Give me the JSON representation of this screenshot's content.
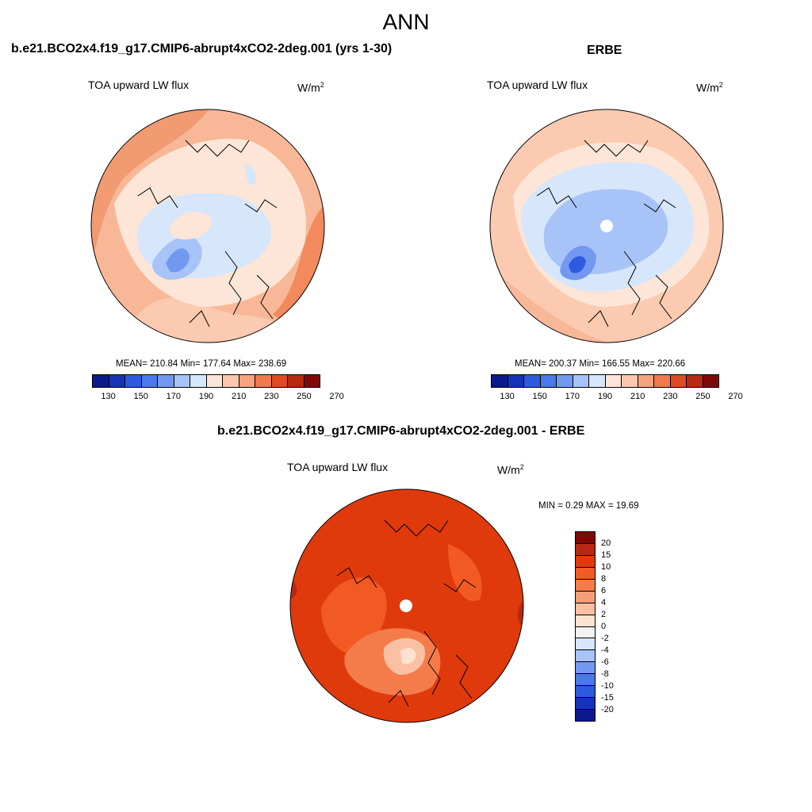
{
  "header": {
    "title": "ANN"
  },
  "panels": {
    "model": {
      "case_name": "b.e21.BCO2x4.f19_g17.CMIP6-abrupt4xCO2-2deg.001 (yrs 1-30)",
      "variable": "TOA upward LW flux",
      "units": "W/m",
      "units_exp": "2",
      "stats": "MEAN= 210.84  Min= 177.64  Max= 238.69",
      "mean": 210.84,
      "min": 177.64,
      "max": 238.69
    },
    "obs": {
      "case_name": "ERBE",
      "variable": "TOA upward LW flux",
      "units": "W/m",
      "units_exp": "2",
      "stats": "MEAN= 200.37  Min= 166.55  Max= 220.66",
      "mean": 200.37,
      "min": 166.55,
      "max": 220.66
    },
    "diff": {
      "case_name": "b.e21.BCO2x4.f19_g17.CMIP6-abrupt4xCO2-2deg.001 - ERBE",
      "variable": "TOA upward LW flux",
      "units": "W/m",
      "units_exp": "2",
      "stats": "MIN =   0.29 MAX =  19.69",
      "min": 0.29,
      "max": 19.69
    }
  },
  "colorbars": {
    "absolute": {
      "colors": [
        "#0a1a8c",
        "#1533b8",
        "#2e5ae0",
        "#4a78ee",
        "#7398f2",
        "#a7c3f8",
        "#d6e6fb",
        "#fde6d8",
        "#fbc8ae",
        "#f7a382",
        "#f2784e",
        "#e04a22",
        "#b82812",
        "#800808"
      ],
      "tick_labels": [
        "130",
        "150",
        "170",
        "190",
        "210",
        "230",
        "250",
        "270"
      ]
    },
    "difference": {
      "colors": [
        "#800808",
        "#b82812",
        "#e03a0c",
        "#f25a24",
        "#f47c4a",
        "#f79e78",
        "#fac0a4",
        "#fde2d0",
        "#f2f2f2",
        "#d6e6fb",
        "#a7c3f8",
        "#7398f2",
        "#4a78ee",
        "#2e5ae0",
        "#1533b8",
        "#0a1a8c"
      ],
      "tick_labels": [
        "20",
        "15",
        "10",
        "8",
        "6",
        "4",
        "2",
        "0",
        "-2",
        "-4",
        "-6",
        "-8",
        "-10",
        "-15",
        "-20"
      ]
    }
  }
}
